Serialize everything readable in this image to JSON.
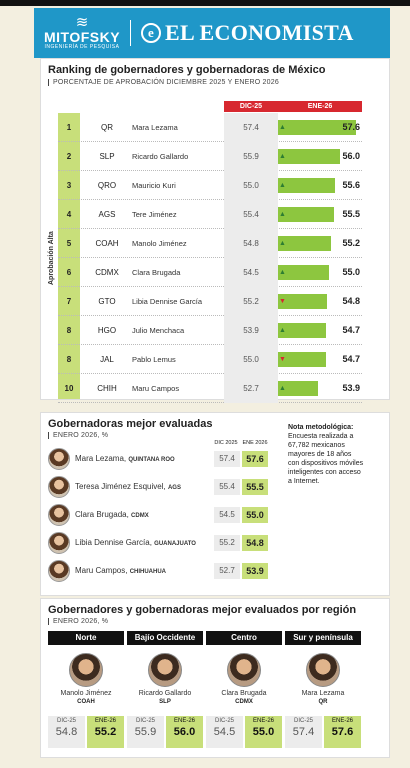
{
  "header": {
    "left_brand": "MITOFSKY",
    "left_tagline": "INGENIERÍA DE PESQUISA",
    "right_brand": "EL ECONOMISTA"
  },
  "ranking": {
    "title": "Ranking de gobernadores y gobernadoras de México",
    "subtitle": "PORCENTAJE DE APROBACIÓN DICIEMBRE 2025 Y ENERO 2026",
    "col_dic": "DIC-25",
    "col_ene": "ENE-26",
    "side_label": "Aprobación Alta"
  },
  "chart_data": {
    "type": "bar",
    "title": "Ranking de gobernadores y gobernadoras de México",
    "categories": [
      "QR",
      "SLP",
      "QRO",
      "AGS",
      "COAH",
      "CDMX",
      "GTO",
      "HGO",
      "JAL",
      "CHIH"
    ],
    "ranks": [
      "1",
      "2",
      "3",
      "4",
      "5",
      "6",
      "7",
      "8",
      "8",
      "10"
    ],
    "names": [
      "Mara Lezama",
      "Ricardo Gallardo",
      "Mauricio Kuri",
      "Tere Jiménez",
      "Manolo Jiménez",
      "Clara Brugada",
      "Libia Dennise García",
      "Julio Menchaca",
      "Pablo Lemus",
      "Maru Campos"
    ],
    "series": [
      {
        "name": "DIC-25",
        "values": [
          57.4,
          55.9,
          55.0,
          55.4,
          54.8,
          54.5,
          55.2,
          53.9,
          55.0,
          52.7
        ]
      },
      {
        "name": "ENE-26",
        "values": [
          57.6,
          56.0,
          55.6,
          55.5,
          55.2,
          55.0,
          54.8,
          54.7,
          54.7,
          53.9
        ]
      }
    ],
    "trend": [
      "up",
      "up",
      "up",
      "up",
      "up",
      "up",
      "down",
      "up",
      "down",
      "up"
    ]
  },
  "colors": {
    "header_blue": "#1f97c8",
    "green": "#8dc63f",
    "light_green": "#c8df7a",
    "red_header": "#d7282f",
    "up": "#2e7d32",
    "down": "#d7282f"
  },
  "evaluadas": {
    "title": "Gobernadoras mejor evaluadas",
    "subtitle": "ENERO 2026, %",
    "col_dic": "DIC 2025",
    "col_ene": "ENE 2026",
    "rows": [
      {
        "name": "Mara Lezama,",
        "state": "QUINTANA ROO",
        "dic": "57.4",
        "ene": "57.6"
      },
      {
        "name": "Teresa Jiménez Esquivel,",
        "state": "AGS",
        "dic": "55.4",
        "ene": "55.5"
      },
      {
        "name": "Clara Brugada,",
        "state": "CDMX",
        "dic": "54.5",
        "ene": "55.0"
      },
      {
        "name": "Libia Dennise García,",
        "state": "GUANAJUATO",
        "dic": "55.2",
        "ene": "54.8"
      },
      {
        "name": "Maru Campos,",
        "state": "CHIHUAHUA",
        "dic": "52.7",
        "ene": "53.9"
      }
    ]
  },
  "nota": {
    "title": "Nota metodológica:",
    "text": "Encuesta realizada a 67,782 mexicanos mayores de 18 años con dispositivos móviles inteligentes con acceso a Internet."
  },
  "region": {
    "title": "Gobernadores y gobernadoras mejor evaluados por región",
    "subtitle": "ENERO 2026, %",
    "dic_label": "DIC-25",
    "ene_label": "ENE-26",
    "cards": [
      {
        "region": "Norte",
        "name": "Manolo Jiménez",
        "state": "COAH",
        "dic": "54.8",
        "ene": "55.2"
      },
      {
        "region": "Bajío Occidente",
        "name": "Ricardo Gallardo",
        "state": "SLP",
        "dic": "55.9",
        "ene": "56.0"
      },
      {
        "region": "Centro",
        "name": "Clara Brugada",
        "state": "CDMX",
        "dic": "54.5",
        "ene": "55.0"
      },
      {
        "region": "Sur y península",
        "name": "Mara Lezama",
        "state": "QR",
        "dic": "57.4",
        "ene": "57.6"
      }
    ]
  }
}
